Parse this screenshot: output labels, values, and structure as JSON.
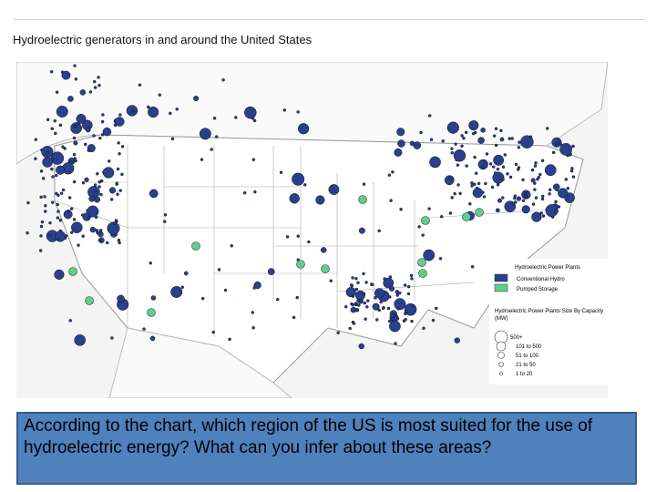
{
  "header": {
    "title": "Hydroelectric  generators  in and around the United  States"
  },
  "legend": {
    "type_heading": "Hydroelectric Power Plants",
    "types": [
      "Conventional Hydro",
      "Pumped Storage"
    ],
    "size_heading": "Hydroelectric Power Plants Size By Capacity (MW)",
    "sizes": [
      "500+",
      "101 to 500",
      "51 to 100",
      "21 to 50",
      "1 to 20"
    ]
  },
  "question": "According to the chart, which region of the US is most suited for the use of hydroelectric energy?  What can you infer about these areas?"
}
